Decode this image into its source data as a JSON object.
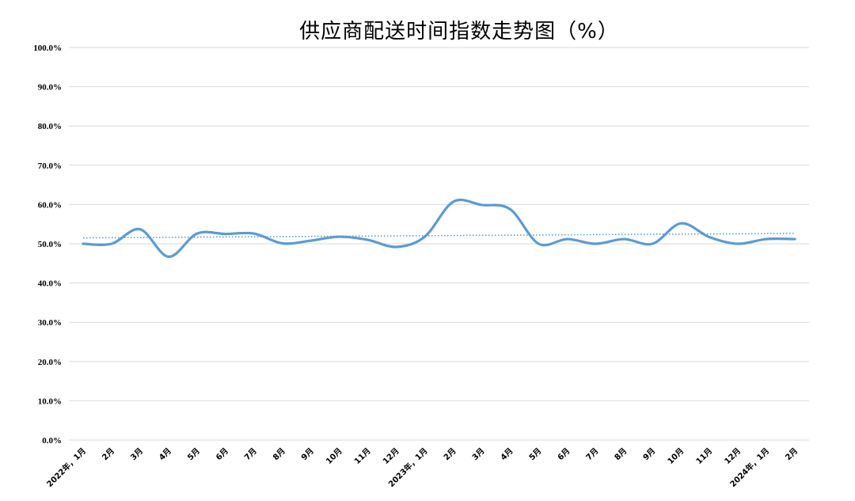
{
  "chart_data": {
    "type": "line",
    "title": "供应商配送时间指数走势图（%）",
    "categories": [
      "2022年，1月",
      "2月",
      "3月",
      "4月",
      "5月",
      "6月",
      "7月",
      "8月",
      "9月",
      "10月",
      "11月",
      "12月",
      "2023年，1月",
      "2月",
      "3月",
      "4月",
      "5月",
      "6月",
      "7月",
      "8月",
      "9月",
      "10月",
      "11月",
      "12月",
      "2024年，1月",
      "2月"
    ],
    "series": [
      {
        "values": [
          50.0,
          50.0,
          53.7,
          46.7,
          52.6,
          52.5,
          52.6,
          50.1,
          50.8,
          51.8,
          51.0,
          49.2,
          51.8,
          60.7,
          59.9,
          58.8,
          50.0,
          51.2,
          50.0,
          51.2,
          50.0,
          55.2,
          51.7,
          50.0,
          51.2,
          51.2
        ],
        "color": "#5b9bd5"
      }
    ],
    "trendline": {
      "type": "linear",
      "style": "dotted",
      "color": "#5b9bd5"
    },
    "ylim": [
      0,
      100
    ],
    "yticks": [
      "0.0%",
      "10.0%",
      "20.0%",
      "30.0%",
      "40.0%",
      "50.0%",
      "60.0%",
      "70.0%",
      "80.0%",
      "90.0%",
      "100.0%"
    ],
    "grid": true,
    "xlabel": "",
    "ylabel": ""
  }
}
